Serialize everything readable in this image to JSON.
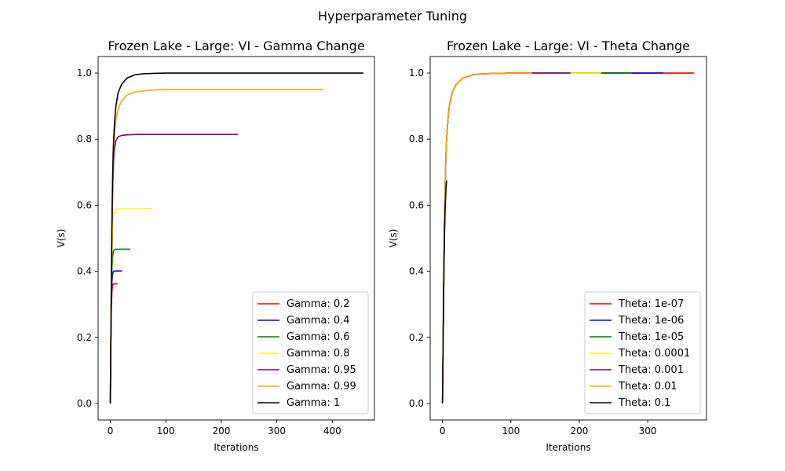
{
  "figure": {
    "suptitle": "Hyperparameter Tuning"
  },
  "chart_data": [
    {
      "type": "line",
      "title": "Frozen Lake - Large: VI - Gamma Change",
      "xlabel": "Iterations",
      "ylabel": "V(s)",
      "xlim": [
        -22,
        476
      ],
      "ylim": [
        -0.05,
        1.05
      ],
      "xticks": [
        0,
        100,
        200,
        300,
        400
      ],
      "yticks": [
        0.0,
        0.2,
        0.4,
        0.6,
        0.8,
        1.0
      ],
      "xtick_labels": [
        "0",
        "100",
        "200",
        "300",
        "400"
      ],
      "ytick_labels": [
        "0.0",
        "0.2",
        "0.4",
        "0.6",
        "0.8",
        "1.0"
      ],
      "legend": "lower-right",
      "grid": false,
      "series": [
        {
          "name": "Gamma: 0.2",
          "color": "#ff0000",
          "values": {
            "x": [
              0,
              1,
              2,
              3,
              4,
              5,
              6,
              8,
              10,
              13
            ],
            "y": [
              0,
              0.2,
              0.3,
              0.34,
              0.355,
              0.36,
              0.362,
              0.362,
              0.362,
              0.362
            ]
          }
        },
        {
          "name": "Gamma: 0.4",
          "color": "#0000ff",
          "values": {
            "x": [
              0,
              1,
              2,
              3,
              4,
              5,
              6,
              8,
              10,
              14,
              18,
              21
            ],
            "y": [
              0,
              0.2,
              0.32,
              0.37,
              0.39,
              0.397,
              0.4,
              0.401,
              0.401,
              0.401,
              0.401,
              0.401
            ]
          }
        },
        {
          "name": "Gamma: 0.6",
          "color": "#008000",
          "values": {
            "x": [
              0,
              1,
              2,
              3,
              4,
              5,
              6,
              8,
              10,
              14,
              20,
              28,
              36
            ],
            "y": [
              0,
              0.2,
              0.34,
              0.41,
              0.44,
              0.455,
              0.462,
              0.466,
              0.467,
              0.467,
              0.467,
              0.467,
              0.467
            ]
          }
        },
        {
          "name": "Gamma: 0.8",
          "color": "#ffff00",
          "values": {
            "x": [
              0,
              1,
              2,
              3,
              4,
              5,
              6,
              8,
              10,
              14,
              20,
              30,
              50,
              76
            ],
            "y": [
              0,
              0.2,
              0.36,
              0.46,
              0.52,
              0.555,
              0.572,
              0.583,
              0.587,
              0.589,
              0.59,
              0.59,
              0.59,
              0.59
            ]
          }
        },
        {
          "name": "Gamma: 0.95",
          "color": "#800080",
          "values": {
            "x": [
              0,
              1,
              2,
              3,
              4,
              5,
              6,
              8,
              10,
              14,
              20,
              30,
              45,
              70,
              120,
              230
            ],
            "y": [
              0,
              0.2,
              0.38,
              0.52,
              0.62,
              0.69,
              0.735,
              0.775,
              0.795,
              0.807,
              0.811,
              0.813,
              0.814,
              0.814,
              0.814,
              0.814
            ]
          }
        },
        {
          "name": "Gamma: 0.99",
          "color": "#ffa500",
          "values": {
            "x": [
              0,
              1,
              2,
              3,
              4,
              5,
              6,
              8,
              10,
              14,
              20,
              30,
              45,
              70,
              100,
              150,
              250,
              384
            ],
            "y": [
              0,
              0.2,
              0.38,
              0.54,
              0.65,
              0.72,
              0.77,
              0.825,
              0.857,
              0.89,
              0.915,
              0.933,
              0.943,
              0.948,
              0.95,
              0.95,
              0.95,
              0.95
            ]
          }
        },
        {
          "name": "Gamma: 1",
          "color": "#000000",
          "values": {
            "x": [
              0,
              1,
              2,
              3,
              4,
              5,
              6,
              8,
              10,
              14,
              20,
              30,
              45,
              60,
              80,
              100,
              150,
              250,
              456
            ],
            "y": [
              0,
              0.2,
              0.4,
              0.56,
              0.67,
              0.75,
              0.8,
              0.86,
              0.9,
              0.94,
              0.965,
              0.985,
              0.995,
              0.998,
              0.999,
              1.0,
              1.0,
              1.0,
              1.0
            ]
          }
        }
      ]
    },
    {
      "type": "line",
      "title": "Frozen Lake - Large: VI - Theta Change",
      "xlabel": "Iterations",
      "ylabel": "V(s)",
      "xlim": [
        -18,
        386
      ],
      "ylim": [
        -0.05,
        1.05
      ],
      "xticks": [
        0,
        100,
        200,
        300
      ],
      "yticks": [
        0.0,
        0.2,
        0.4,
        0.6,
        0.8,
        1.0
      ],
      "xtick_labels": [
        "0",
        "100",
        "200",
        "300"
      ],
      "ytick_labels": [
        "0.0",
        "0.2",
        "0.4",
        "0.6",
        "0.8",
        "1.0"
      ],
      "legend": "lower-right",
      "grid": false,
      "series": [
        {
          "name": "Theta: 1e-07",
          "color": "#ff0000",
          "values": {
            "x": [
              0,
              1,
              2,
              3,
              4,
              5,
              6,
              8,
              10,
              14,
              20,
              30,
              45,
              60,
              80,
              100,
              150,
              250,
              368
            ],
            "y": [
              0,
              0.2,
              0.4,
              0.56,
              0.67,
              0.75,
              0.8,
              0.86,
              0.9,
              0.94,
              0.965,
              0.985,
              0.995,
              0.998,
              0.999,
              1.0,
              1.0,
              1.0,
              1.0
            ]
          }
        },
        {
          "name": "Theta: 1e-06",
          "color": "#0000ff",
          "values": {
            "x": [
              0,
              1,
              2,
              3,
              4,
              5,
              6,
              8,
              10,
              14,
              20,
              30,
              45,
              60,
              80,
              100,
              150,
              250,
              323
            ],
            "y": [
              0,
              0.2,
              0.4,
              0.56,
              0.67,
              0.75,
              0.8,
              0.86,
              0.9,
              0.94,
              0.965,
              0.985,
              0.995,
              0.998,
              0.999,
              1.0,
              1.0,
              1.0,
              1.0
            ]
          }
        },
        {
          "name": "Theta: 1e-05",
          "color": "#008000",
          "values": {
            "x": [
              0,
              1,
              2,
              3,
              4,
              5,
              6,
              8,
              10,
              14,
              20,
              30,
              45,
              60,
              80,
              100,
              150,
              200,
              277
            ],
            "y": [
              0,
              0.2,
              0.4,
              0.56,
              0.67,
              0.75,
              0.8,
              0.86,
              0.9,
              0.94,
              0.965,
              0.985,
              0.995,
              0.998,
              0.999,
              1.0,
              1.0,
              1.0,
              1.0
            ]
          }
        },
        {
          "name": "Theta: 0.0001",
          "color": "#ffff00",
          "values": {
            "x": [
              0,
              1,
              2,
              3,
              4,
              5,
              6,
              8,
              10,
              14,
              20,
              30,
              45,
              60,
              80,
              100,
              150,
              200,
              232
            ],
            "y": [
              0,
              0.2,
              0.4,
              0.56,
              0.67,
              0.75,
              0.8,
              0.86,
              0.9,
              0.94,
              0.965,
              0.985,
              0.995,
              0.998,
              0.999,
              1.0,
              1.0,
              1.0,
              1.0
            ]
          }
        },
        {
          "name": "Theta: 0.001",
          "color": "#800080",
          "values": {
            "x": [
              0,
              1,
              2,
              3,
              4,
              5,
              6,
              8,
              10,
              14,
              20,
              30,
              45,
              60,
              80,
              100,
              150,
              187
            ],
            "y": [
              0,
              0.2,
              0.4,
              0.56,
              0.67,
              0.75,
              0.8,
              0.86,
              0.9,
              0.94,
              0.965,
              0.985,
              0.995,
              0.998,
              0.999,
              1.0,
              1.0,
              1.0
            ]
          }
        },
        {
          "name": "Theta: 0.01",
          "color": "#ffa500",
          "values": {
            "x": [
              0,
              1,
              2,
              3,
              4,
              5,
              6,
              8,
              10,
              14,
              20,
              30,
              45,
              60,
              80,
              100,
              131
            ],
            "y": [
              0,
              0.2,
              0.4,
              0.56,
              0.67,
              0.75,
              0.8,
              0.86,
              0.9,
              0.94,
              0.965,
              0.985,
              0.995,
              0.998,
              0.999,
              1.0,
              1.0
            ]
          }
        },
        {
          "name": "Theta: 0.1",
          "color": "#000000",
          "values": {
            "x": [
              0,
              1,
              2,
              3,
              4,
              5,
              6
            ],
            "y": [
              0,
              0.2,
              0.4,
              0.52,
              0.6,
              0.645,
              0.675
            ]
          }
        }
      ]
    }
  ]
}
